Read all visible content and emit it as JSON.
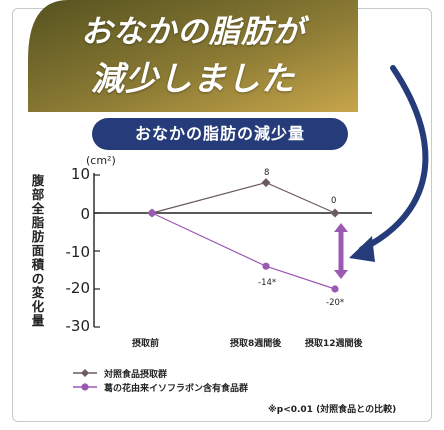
{
  "banner": {
    "line1": "おなかの脂肪が",
    "line2": "減少しました"
  },
  "colors": {
    "banner_green": "#6e6a2b",
    "banner_gold": "#c7a54a",
    "pill_navy": "#263c7a",
    "control_line": "#6b5a5e",
    "test_line": "#9b59b3",
    "arrow_navy": "#263c7a"
  },
  "chart_data": {
    "type": "line",
    "title": "おなかの脂肪の減少量",
    "ylabel": "腹部全脂肪面積の変化量",
    "yunit": "(cm²)",
    "ylim": [
      -30,
      10
    ],
    "yticks": [
      "10",
      "0",
      "-10",
      "-20",
      "-30"
    ],
    "categories": [
      "摂取前",
      "摂取8週間後",
      "摂取12週間後"
    ],
    "series": [
      {
        "name": "対照食品摂取群",
        "values": [
          0,
          8,
          0
        ],
        "labels": [
          "",
          "8",
          "0"
        ],
        "color": "#6b5a5e"
      },
      {
        "name": "葛の花由来イソフラボン含有食品群",
        "values": [
          0,
          -14,
          -20
        ],
        "labels": [
          "",
          "-14*",
          "-20*"
        ],
        "color": "#9b59b3"
      }
    ],
    "annotation": "※p<0.01 (対照食品との比較)",
    "legend_position": "bottom-left"
  }
}
